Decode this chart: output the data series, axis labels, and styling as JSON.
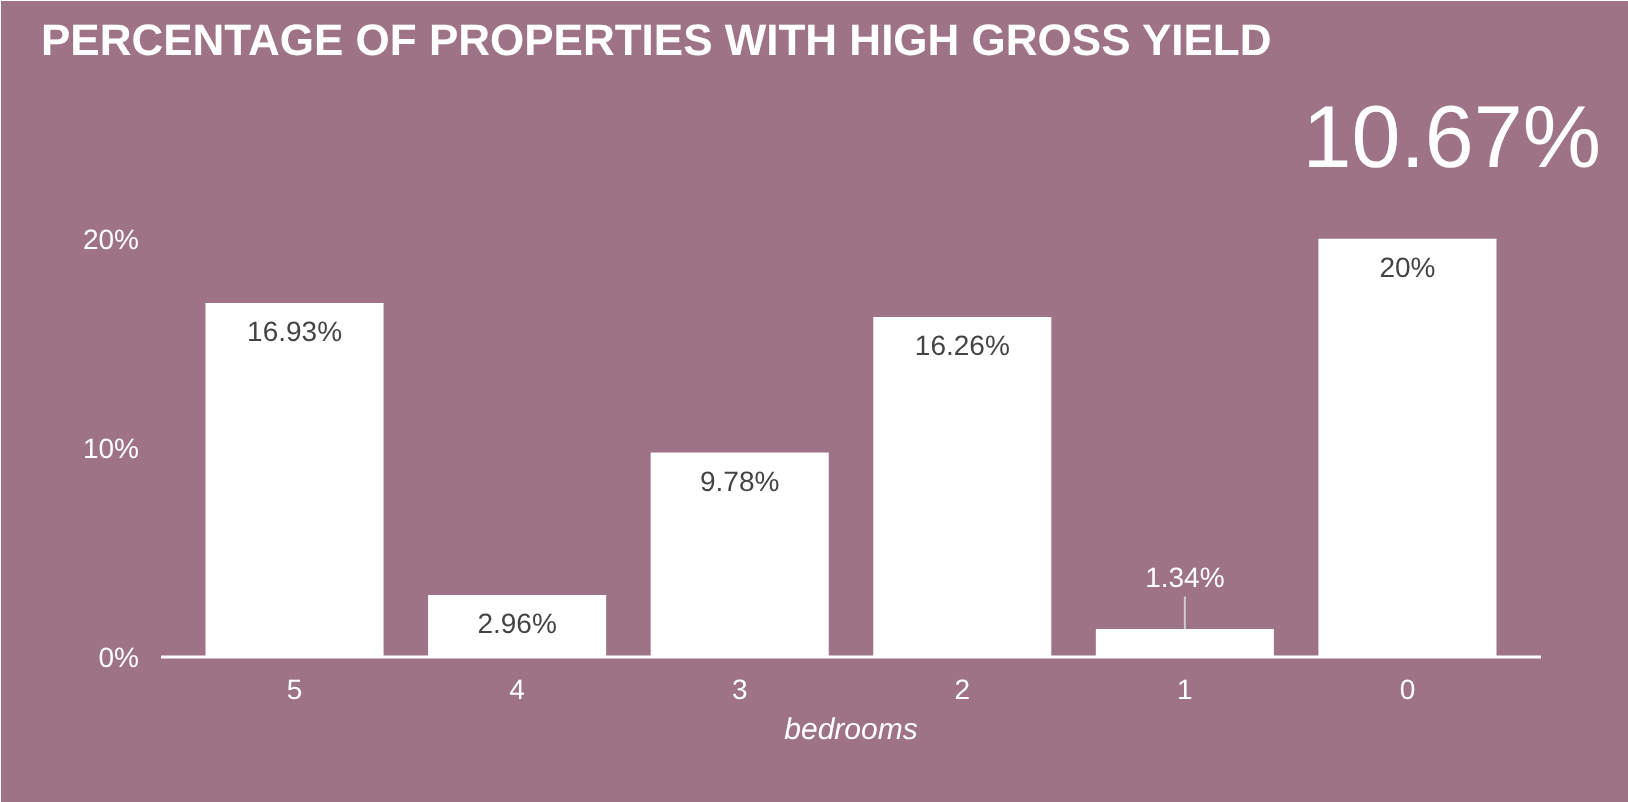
{
  "chart_data": {
    "type": "bar",
    "title": "PERCENTAGE OF PROPERTIES WITH HIGH GROSS YIELD",
    "annotations": [
      "10.67%"
    ],
    "xlabel": "bedrooms",
    "categories": [
      "5",
      "4",
      "3",
      "2",
      "1",
      "0"
    ],
    "values": [
      16.93,
      2.96,
      9.78,
      16.26,
      1.34,
      20
    ],
    "value_labels": [
      "16.93%",
      "2.96%",
      "9.78%",
      "16.26%",
      "1.34%",
      "20%"
    ],
    "color": "#ffffff",
    "ylim": [
      0,
      22
    ],
    "yticks": [
      {
        "value": 0,
        "label": "0%"
      },
      {
        "value": 10,
        "label": "10%"
      },
      {
        "value": 20,
        "label": "20%"
      }
    ],
    "grid": false
  }
}
